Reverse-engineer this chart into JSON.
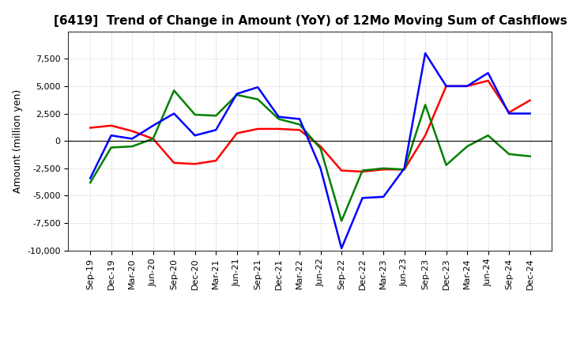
{
  "title": "[6419]  Trend of Change in Amount (YoY) of 12Mo Moving Sum of Cashflows",
  "ylabel": "Amount (million yen)",
  "background_color": "#ffffff",
  "grid_color": "#aaaaaa",
  "x_labels": [
    "Sep-19",
    "Dec-19",
    "Mar-20",
    "Jun-20",
    "Sep-20",
    "Dec-20",
    "Mar-21",
    "Jun-21",
    "Sep-21",
    "Dec-21",
    "Mar-22",
    "Jun-22",
    "Sep-22",
    "Dec-22",
    "Mar-23",
    "Jun-23",
    "Sep-23",
    "Dec-23",
    "Mar-24",
    "Jun-24",
    "Sep-24",
    "Dec-24"
  ],
  "operating": [
    1200,
    1400,
    900,
    200,
    -2000,
    -2100,
    -1800,
    700,
    1100,
    1100,
    1000,
    -500,
    -2700,
    -2800,
    -2600,
    -2600,
    500,
    5000,
    5000,
    5500,
    2600,
    3700
  ],
  "investing": [
    -3800,
    -600,
    -500,
    200,
    4600,
    2400,
    2300,
    4200,
    3800,
    2000,
    1500,
    -700,
    -7300,
    -2700,
    -2500,
    -2600,
    3300,
    -2200,
    -500,
    500,
    -1200,
    -1400
  ],
  "free": [
    -3400,
    500,
    200,
    1400,
    2500,
    500,
    1000,
    4300,
    4900,
    2200,
    2000,
    -2500,
    -9800,
    -5200,
    -5100,
    -2500,
    8000,
    5000,
    5000,
    6200,
    2500,
    2500
  ],
  "operating_color": "#ff0000",
  "investing_color": "#008000",
  "free_color": "#0000ff",
  "ylim": [
    -10000,
    10000
  ],
  "yticks": [
    -10000,
    -7500,
    -5000,
    -2500,
    0,
    2500,
    5000,
    7500
  ],
  "ytick_labels": [
    "-10,000",
    "-7,500",
    "-5,000",
    "-2,500",
    "0",
    "2,500",
    "5,000",
    "7,500"
  ],
  "line_width": 1.8,
  "title_fontsize": 11,
  "tick_fontsize": 8,
  "ylabel_fontsize": 9,
  "legend_fontsize": 9
}
